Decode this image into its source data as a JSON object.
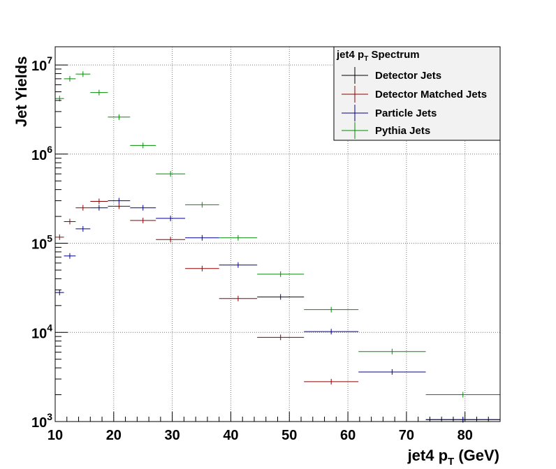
{
  "chart_data": {
    "type": "scatter",
    "title": "",
    "xlabel": {
      "main": "jet4 p",
      "sub": "T",
      "suffix": " (GeV)"
    },
    "ylabel": "Jet Yields",
    "xlim": [
      10,
      86
    ],
    "ylim": [
      1000,
      16000000
    ],
    "yscale": "log",
    "grid": true,
    "x_ticks": [
      10,
      20,
      30,
      40,
      50,
      60,
      70,
      80
    ],
    "y_ticks": [
      {
        "value": 1000,
        "base": "10",
        "exp": "3"
      },
      {
        "value": 10000,
        "base": "10",
        "exp": "4"
      },
      {
        "value": 100000,
        "base": "10",
        "exp": "5"
      },
      {
        "value": 1000000,
        "base": "10",
        "exp": "6"
      },
      {
        "value": 10000000,
        "base": "10",
        "exp": "7"
      }
    ],
    "legend": {
      "title_main": "jet4 p",
      "title_sub": "T",
      "title_suffix": " Spectrum",
      "position": "top-right"
    },
    "series": [
      {
        "name": "Detector Jets",
        "color": "#000000",
        "points": [
          {
            "x0": 73.3,
            "x1": 86,
            "y": 1050
          }
        ]
      },
      {
        "name": "Detector Matched Jets",
        "color": "#8b0000",
        "points": [
          {
            "x0": 10,
            "x1": 11.5,
            "y": 117000
          },
          {
            "x0": 11.5,
            "x1": 13.5,
            "y": 175000
          },
          {
            "x0": 13.5,
            "x1": 16.0,
            "y": 250000
          },
          {
            "x0": 16.0,
            "x1": 19.0,
            "y": 295000
          },
          {
            "x0": 19.0,
            "x1": 22.8,
            "y": 260000
          },
          {
            "x0": 22.8,
            "x1": 27.2,
            "y": 180000
          },
          {
            "x0": 27.2,
            "x1": 32.2,
            "y": 110000
          },
          {
            "x0": 32.2,
            "x1": 38.0,
            "y": 52000
          },
          {
            "x0": 38.0,
            "x1": 44.5,
            "y": 24000
          },
          {
            "x0": 44.5,
            "x1": 52.5,
            "y": 8800
          },
          {
            "x0": 52.5,
            "x1": 61.8,
            "y": 2800
          }
        ]
      },
      {
        "name": "Particle Jets",
        "color": "#00008b",
        "points": [
          {
            "x0": 10,
            "x1": 11.5,
            "y": 28000
          },
          {
            "x0": 11.5,
            "x1": 13.5,
            "y": 72000
          },
          {
            "x0": 13.5,
            "x1": 16.0,
            "y": 145000
          },
          {
            "x0": 16.0,
            "x1": 19.0,
            "y": 250000
          },
          {
            "x0": 19.0,
            "x1": 22.8,
            "y": 300000
          },
          {
            "x0": 22.8,
            "x1": 27.2,
            "y": 250000
          },
          {
            "x0": 27.2,
            "x1": 32.2,
            "y": 190000
          },
          {
            "x0": 32.2,
            "x1": 38.0,
            "y": 115000
          },
          {
            "x0": 38.0,
            "x1": 44.5,
            "y": 57000
          },
          {
            "x0": 44.5,
            "x1": 52.5,
            "y": 25000
          },
          {
            "x0": 52.5,
            "x1": 61.8,
            "y": 10200
          },
          {
            "x0": 61.8,
            "x1": 73.3,
            "y": 3600
          },
          {
            "x0": 73.3,
            "x1": 86,
            "y": 1050
          }
        ]
      },
      {
        "name": "Pythia Jets",
        "color": "#008b00",
        "points": [
          {
            "x0": 10,
            "x1": 11.5,
            "y": 4200000
          },
          {
            "x0": 11.5,
            "x1": 13.5,
            "y": 7000000
          },
          {
            "x0": 13.5,
            "x1": 16.0,
            "y": 7900000
          },
          {
            "x0": 16.0,
            "x1": 19.0,
            "y": 4900000
          },
          {
            "x0": 19.0,
            "x1": 22.8,
            "y": 2600000
          },
          {
            "x0": 22.8,
            "x1": 27.2,
            "y": 1250000
          },
          {
            "x0": 27.2,
            "x1": 32.2,
            "y": 600000
          },
          {
            "x0": 32.2,
            "x1": 38.0,
            "y": 270000
          },
          {
            "x0": 38.0,
            "x1": 44.5,
            "y": 115000
          },
          {
            "x0": 44.5,
            "x1": 52.5,
            "y": 45000
          },
          {
            "x0": 52.5,
            "x1": 61.8,
            "y": 18000
          },
          {
            "x0": 61.8,
            "x1": 73.3,
            "y": 6100
          },
          {
            "x0": 73.3,
            "x1": 86,
            "y": 2000
          }
        ]
      }
    ]
  }
}
